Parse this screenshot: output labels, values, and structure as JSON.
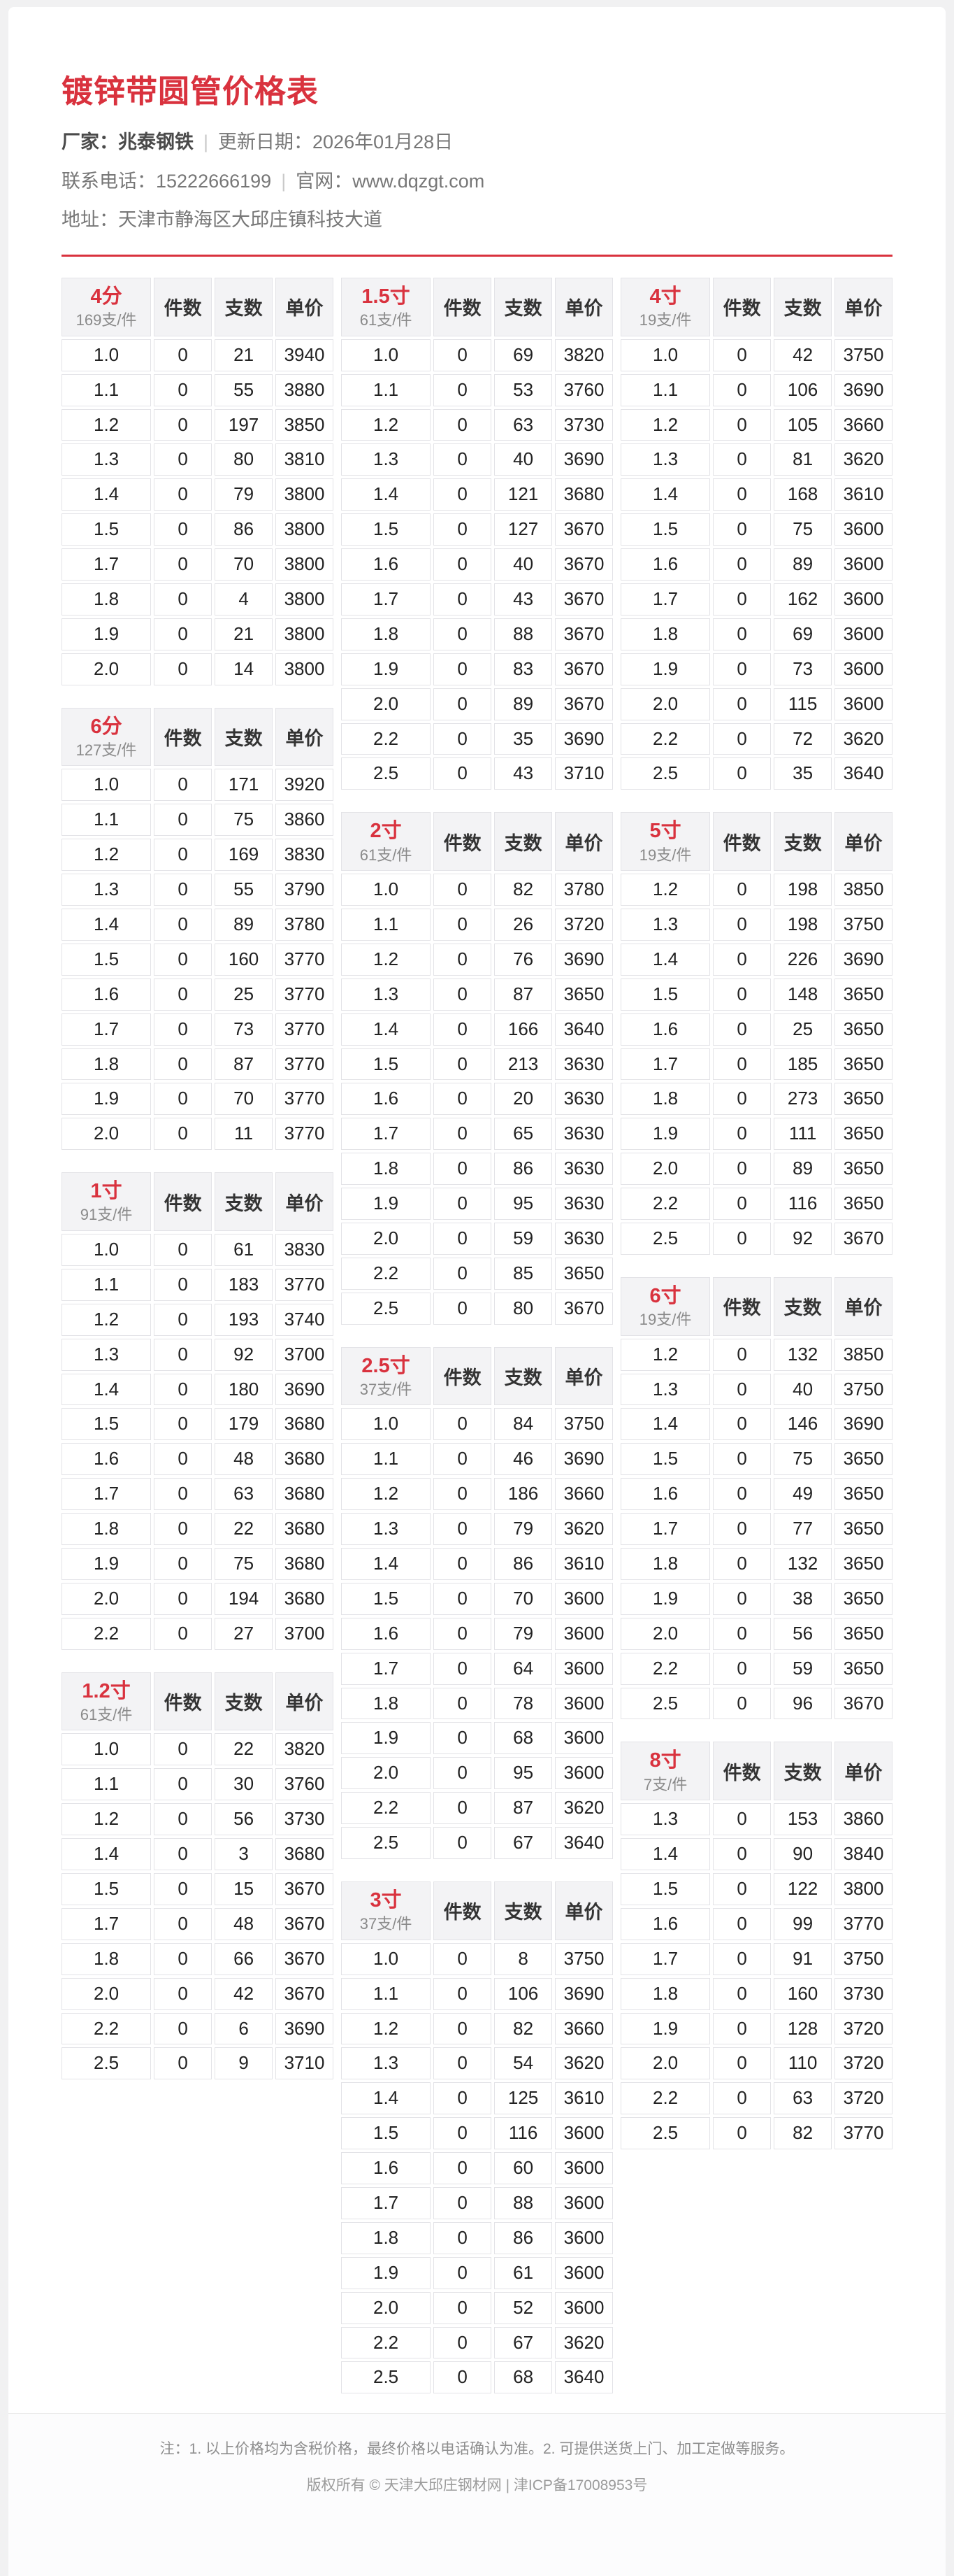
{
  "header": {
    "title": "镀锌带圆管价格表",
    "manufacturer_label": "厂家：",
    "manufacturer": "兆泰钢铁",
    "separator": "|",
    "update_label": "更新日期：",
    "update_date": "2026年01月28日",
    "phone_label": "联系电话：",
    "phone": "15222666199",
    "website_label": "官网：",
    "website": "www.dqzgt.com",
    "address_label": "地址：",
    "address": "天津市静海区大邱庄镇科技大道"
  },
  "table_headers": {
    "pieces": "件数",
    "count": "支数",
    "price": "单价"
  },
  "colors": {
    "accent_red": "#d9323e",
    "price_blue": "#2b78c5",
    "spec_brown": "#a5794f",
    "header_bg": "#f3f3f5",
    "border": "#e3e3e7"
  },
  "columns": [
    {
      "tables": [
        {
          "name": "4分",
          "per_pack": "169支/件",
          "rows": [
            [
              "1.0",
              "0",
              "21",
              "3940"
            ],
            [
              "1.1",
              "0",
              "55",
              "3880"
            ],
            [
              "1.2",
              "0",
              "197",
              "3850"
            ],
            [
              "1.3",
              "0",
              "80",
              "3810"
            ],
            [
              "1.4",
              "0",
              "79",
              "3800"
            ],
            [
              "1.5",
              "0",
              "86",
              "3800"
            ],
            [
              "1.7",
              "0",
              "70",
              "3800"
            ],
            [
              "1.8",
              "0",
              "4",
              "3800"
            ],
            [
              "1.9",
              "0",
              "21",
              "3800"
            ],
            [
              "2.0",
              "0",
              "14",
              "3800"
            ]
          ]
        },
        {
          "name": "6分",
          "per_pack": "127支/件",
          "rows": [
            [
              "1.0",
              "0",
              "171",
              "3920"
            ],
            [
              "1.1",
              "0",
              "75",
              "3860"
            ],
            [
              "1.2",
              "0",
              "169",
              "3830"
            ],
            [
              "1.3",
              "0",
              "55",
              "3790"
            ],
            [
              "1.4",
              "0",
              "89",
              "3780"
            ],
            [
              "1.5",
              "0",
              "160",
              "3770"
            ],
            [
              "1.6",
              "0",
              "25",
              "3770"
            ],
            [
              "1.7",
              "0",
              "73",
              "3770"
            ],
            [
              "1.8",
              "0",
              "87",
              "3770"
            ],
            [
              "1.9",
              "0",
              "70",
              "3770"
            ],
            [
              "2.0",
              "0",
              "11",
              "3770"
            ]
          ]
        },
        {
          "name": "1寸",
          "per_pack": "91支/件",
          "rows": [
            [
              "1.0",
              "0",
              "61",
              "3830"
            ],
            [
              "1.1",
              "0",
              "183",
              "3770"
            ],
            [
              "1.2",
              "0",
              "193",
              "3740"
            ],
            [
              "1.3",
              "0",
              "92",
              "3700"
            ],
            [
              "1.4",
              "0",
              "180",
              "3690"
            ],
            [
              "1.5",
              "0",
              "179",
              "3680"
            ],
            [
              "1.6",
              "0",
              "48",
              "3680"
            ],
            [
              "1.7",
              "0",
              "63",
              "3680"
            ],
            [
              "1.8",
              "0",
              "22",
              "3680"
            ],
            [
              "1.9",
              "0",
              "75",
              "3680"
            ],
            [
              "2.0",
              "0",
              "194",
              "3680"
            ],
            [
              "2.2",
              "0",
              "27",
              "3700"
            ]
          ]
        },
        {
          "name": "1.2寸",
          "per_pack": "61支/件",
          "rows": [
            [
              "1.0",
              "0",
              "22",
              "3820"
            ],
            [
              "1.1",
              "0",
              "30",
              "3760"
            ],
            [
              "1.2",
              "0",
              "56",
              "3730"
            ],
            [
              "1.4",
              "0",
              "3",
              "3680"
            ],
            [
              "1.5",
              "0",
              "15",
              "3670"
            ],
            [
              "1.7",
              "0",
              "48",
              "3670"
            ],
            [
              "1.8",
              "0",
              "66",
              "3670"
            ],
            [
              "2.0",
              "0",
              "42",
              "3670"
            ],
            [
              "2.2",
              "0",
              "6",
              "3690"
            ],
            [
              "2.5",
              "0",
              "9",
              "3710"
            ]
          ]
        }
      ]
    },
    {
      "tables": [
        {
          "name": "1.5寸",
          "per_pack": "61支/件",
          "rows": [
            [
              "1.0",
              "0",
              "69",
              "3820"
            ],
            [
              "1.1",
              "0",
              "53",
              "3760"
            ],
            [
              "1.2",
              "0",
              "63",
              "3730"
            ],
            [
              "1.3",
              "0",
              "40",
              "3690"
            ],
            [
              "1.4",
              "0",
              "121",
              "3680"
            ],
            [
              "1.5",
              "0",
              "127",
              "3670"
            ],
            [
              "1.6",
              "0",
              "40",
              "3670"
            ],
            [
              "1.7",
              "0",
              "43",
              "3670"
            ],
            [
              "1.8",
              "0",
              "88",
              "3670"
            ],
            [
              "1.9",
              "0",
              "83",
              "3670"
            ],
            [
              "2.0",
              "0",
              "89",
              "3670"
            ],
            [
              "2.2",
              "0",
              "35",
              "3690"
            ],
            [
              "2.5",
              "0",
              "43",
              "3710"
            ]
          ]
        },
        {
          "name": "2寸",
          "per_pack": "61支/件",
          "rows": [
            [
              "1.0",
              "0",
              "82",
              "3780"
            ],
            [
              "1.1",
              "0",
              "26",
              "3720"
            ],
            [
              "1.2",
              "0",
              "76",
              "3690"
            ],
            [
              "1.3",
              "0",
              "87",
              "3650"
            ],
            [
              "1.4",
              "0",
              "166",
              "3640"
            ],
            [
              "1.5",
              "0",
              "213",
              "3630"
            ],
            [
              "1.6",
              "0",
              "20",
              "3630"
            ],
            [
              "1.7",
              "0",
              "65",
              "3630"
            ],
            [
              "1.8",
              "0",
              "86",
              "3630"
            ],
            [
              "1.9",
              "0",
              "95",
              "3630"
            ],
            [
              "2.0",
              "0",
              "59",
              "3630"
            ],
            [
              "2.2",
              "0",
              "85",
              "3650"
            ],
            [
              "2.5",
              "0",
              "80",
              "3670"
            ]
          ]
        },
        {
          "name": "2.5寸",
          "per_pack": "37支/件",
          "rows": [
            [
              "1.0",
              "0",
              "84",
              "3750"
            ],
            [
              "1.1",
              "0",
              "46",
              "3690"
            ],
            [
              "1.2",
              "0",
              "186",
              "3660"
            ],
            [
              "1.3",
              "0",
              "79",
              "3620"
            ],
            [
              "1.4",
              "0",
              "86",
              "3610"
            ],
            [
              "1.5",
              "0",
              "70",
              "3600"
            ],
            [
              "1.6",
              "0",
              "79",
              "3600"
            ],
            [
              "1.7",
              "0",
              "64",
              "3600"
            ],
            [
              "1.8",
              "0",
              "78",
              "3600"
            ],
            [
              "1.9",
              "0",
              "68",
              "3600"
            ],
            [
              "2.0",
              "0",
              "95",
              "3600"
            ],
            [
              "2.2",
              "0",
              "87",
              "3620"
            ],
            [
              "2.5",
              "0",
              "67",
              "3640"
            ]
          ]
        },
        {
          "name": "3寸",
          "per_pack": "37支/件",
          "rows": [
            [
              "1.0",
              "0",
              "8",
              "3750"
            ],
            [
              "1.1",
              "0",
              "106",
              "3690"
            ],
            [
              "1.2",
              "0",
              "82",
              "3660"
            ],
            [
              "1.3",
              "0",
              "54",
              "3620"
            ],
            [
              "1.4",
              "0",
              "125",
              "3610"
            ],
            [
              "1.5",
              "0",
              "116",
              "3600"
            ],
            [
              "1.6",
              "0",
              "60",
              "3600"
            ],
            [
              "1.7",
              "0",
              "88",
              "3600"
            ],
            [
              "1.8",
              "0",
              "86",
              "3600"
            ],
            [
              "1.9",
              "0",
              "61",
              "3600"
            ],
            [
              "2.0",
              "0",
              "52",
              "3600"
            ],
            [
              "2.2",
              "0",
              "67",
              "3620"
            ],
            [
              "2.5",
              "0",
              "68",
              "3640"
            ]
          ]
        }
      ]
    },
    {
      "tables": [
        {
          "name": "4寸",
          "per_pack": "19支/件",
          "rows": [
            [
              "1.0",
              "0",
              "42",
              "3750"
            ],
            [
              "1.1",
              "0",
              "106",
              "3690"
            ],
            [
              "1.2",
              "0",
              "105",
              "3660"
            ],
            [
              "1.3",
              "0",
              "81",
              "3620"
            ],
            [
              "1.4",
              "0",
              "168",
              "3610"
            ],
            [
              "1.5",
              "0",
              "75",
              "3600"
            ],
            [
              "1.6",
              "0",
              "89",
              "3600"
            ],
            [
              "1.7",
              "0",
              "162",
              "3600"
            ],
            [
              "1.8",
              "0",
              "69",
              "3600"
            ],
            [
              "1.9",
              "0",
              "73",
              "3600"
            ],
            [
              "2.0",
              "0",
              "115",
              "3600"
            ],
            [
              "2.2",
              "0",
              "72",
              "3620"
            ],
            [
              "2.5",
              "0",
              "35",
              "3640"
            ]
          ]
        },
        {
          "name": "5寸",
          "per_pack": "19支/件",
          "rows": [
            [
              "1.2",
              "0",
              "198",
              "3850"
            ],
            [
              "1.3",
              "0",
              "198",
              "3750"
            ],
            [
              "1.4",
              "0",
              "226",
              "3690"
            ],
            [
              "1.5",
              "0",
              "148",
              "3650"
            ],
            [
              "1.6",
              "0",
              "25",
              "3650"
            ],
            [
              "1.7",
              "0",
              "185",
              "3650"
            ],
            [
              "1.8",
              "0",
              "273",
              "3650"
            ],
            [
              "1.9",
              "0",
              "111",
              "3650"
            ],
            [
              "2.0",
              "0",
              "89",
              "3650"
            ],
            [
              "2.2",
              "0",
              "116",
              "3650"
            ],
            [
              "2.5",
              "0",
              "92",
              "3670"
            ]
          ]
        },
        {
          "name": "6寸",
          "per_pack": "19支/件",
          "rows": [
            [
              "1.2",
              "0",
              "132",
              "3850"
            ],
            [
              "1.3",
              "0",
              "40",
              "3750"
            ],
            [
              "1.4",
              "0",
              "146",
              "3690"
            ],
            [
              "1.5",
              "0",
              "75",
              "3650"
            ],
            [
              "1.6",
              "0",
              "49",
              "3650"
            ],
            [
              "1.7",
              "0",
              "77",
              "3650"
            ],
            [
              "1.8",
              "0",
              "132",
              "3650"
            ],
            [
              "1.9",
              "0",
              "38",
              "3650"
            ],
            [
              "2.0",
              "0",
              "56",
              "3650"
            ],
            [
              "2.2",
              "0",
              "59",
              "3650"
            ],
            [
              "2.5",
              "0",
              "96",
              "3670"
            ]
          ]
        },
        {
          "name": "8寸",
          "per_pack": "7支/件",
          "rows": [
            [
              "1.3",
              "0",
              "153",
              "3860"
            ],
            [
              "1.4",
              "0",
              "90",
              "3840"
            ],
            [
              "1.5",
              "0",
              "122",
              "3800"
            ],
            [
              "1.6",
              "0",
              "99",
              "3770"
            ],
            [
              "1.7",
              "0",
              "91",
              "3750"
            ],
            [
              "1.8",
              "0",
              "160",
              "3730"
            ],
            [
              "1.9",
              "0",
              "128",
              "3720"
            ],
            [
              "2.0",
              "0",
              "110",
              "3720"
            ],
            [
              "2.2",
              "0",
              "63",
              "3720"
            ],
            [
              "2.5",
              "0",
              "82",
              "3770"
            ]
          ]
        }
      ]
    }
  ],
  "footer": {
    "note": "注：1. 以上价格均为含税价格，最终价格以电话确认为准。2. 可提供送货上门、加工定做等服务。",
    "copyright": "版权所有 © 天津大邱庄钢材网 | 津ICP备17008953号"
  }
}
